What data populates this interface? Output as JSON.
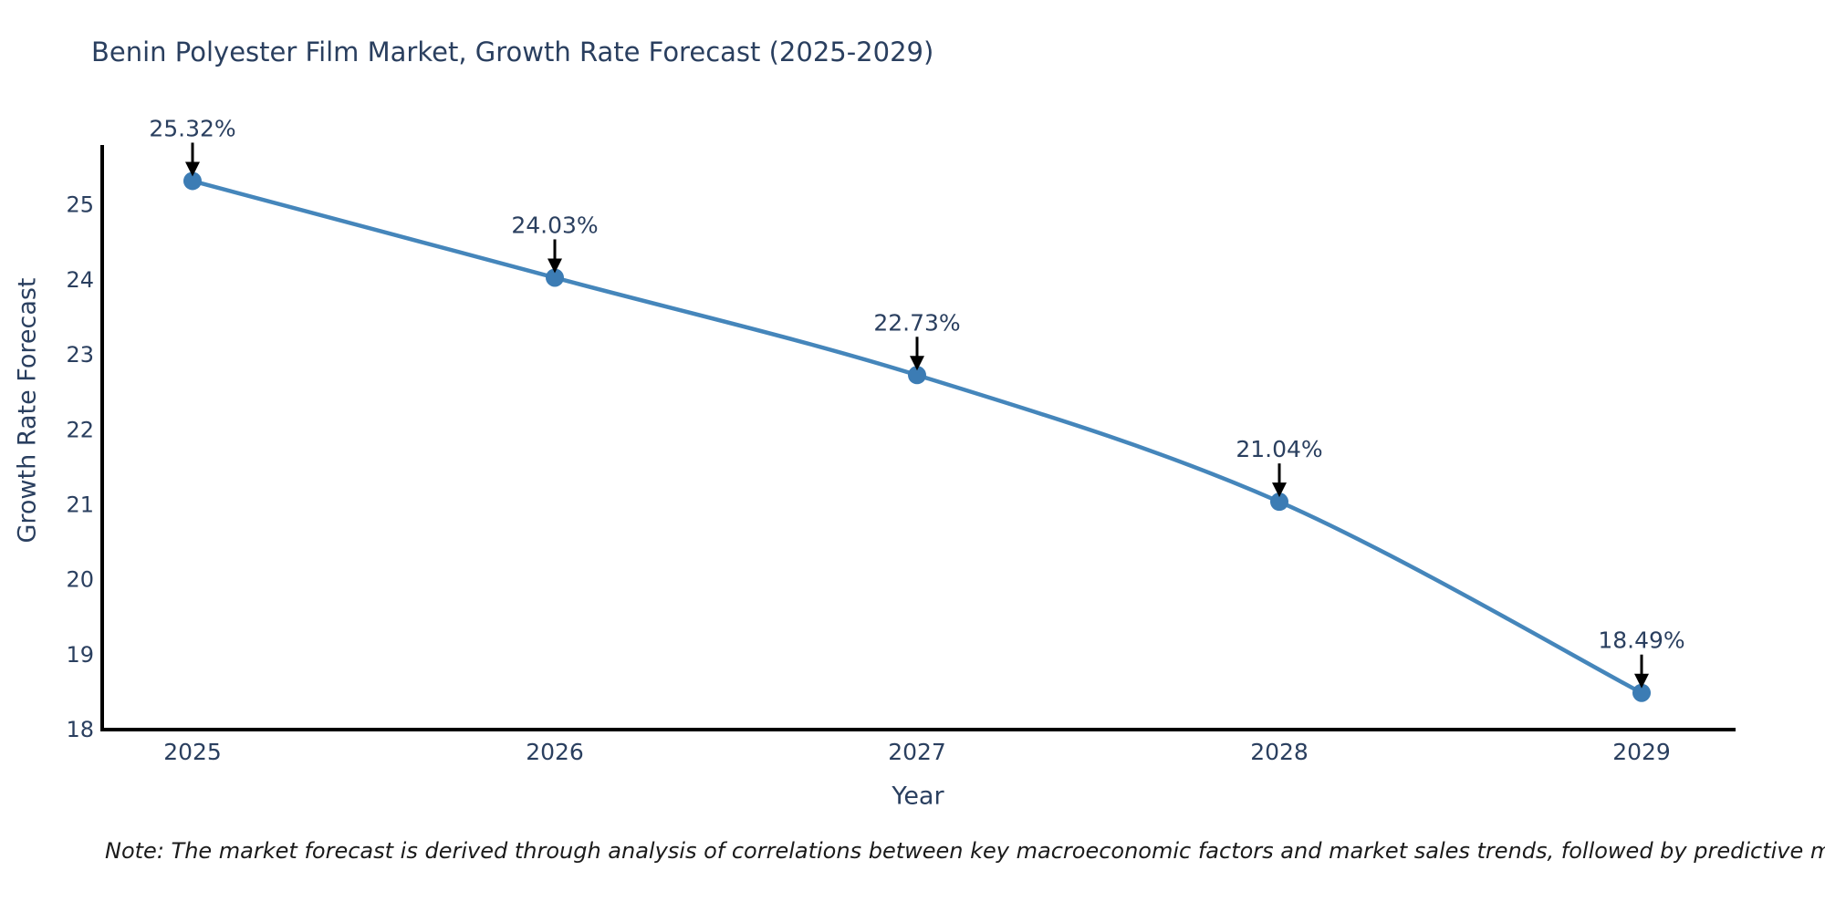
{
  "title": "Benin Polyester Film Market, Growth Rate Forecast (2025-2029)",
  "note": "Note: The market forecast is derived through analysis of correlations between key macroeconomic factors and market sales trends, followed by predictive modeling to project future sales",
  "chart_data": {
    "type": "line",
    "x": [
      2025,
      2026,
      2027,
      2028,
      2029
    ],
    "series": [
      {
        "name": "Growth Rate Forecast",
        "values": [
          25.32,
          24.03,
          22.73,
          21.04,
          18.49
        ]
      }
    ],
    "point_labels": [
      "25.32%",
      "24.03%",
      "22.73%",
      "21.04%",
      "18.49%"
    ],
    "xlabel": "Year",
    "ylabel": "Growth Rate Forecast",
    "ylim": [
      18,
      25.8
    ],
    "yticks": [
      18,
      19,
      20,
      21,
      22,
      23,
      24,
      25
    ],
    "grid": false,
    "legend": "none",
    "line_shape": "spline",
    "colors": {
      "line": "#4586bb",
      "marker": "#3c7cb4",
      "arrow": "#000000",
      "text": "#2a3f5f",
      "axis": "#000000",
      "background": "#ffffff"
    }
  }
}
